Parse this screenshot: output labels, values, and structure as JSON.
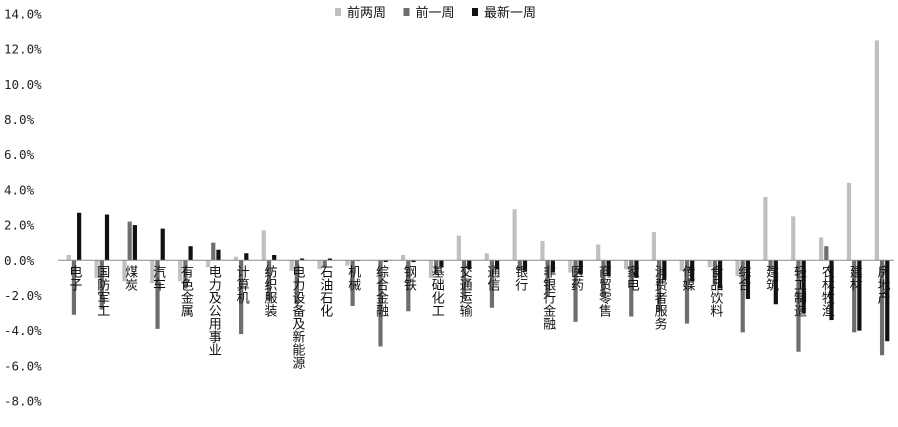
{
  "chart_data": {
    "type": "bar",
    "title": "",
    "xlabel": "",
    "ylabel": "",
    "ylim": [
      -8,
      14
    ],
    "yticks": [
      14,
      12,
      10,
      8,
      6,
      4,
      2,
      0,
      -2,
      -4,
      -6,
      -8
    ],
    "ytick_labels": [
      "14.0%",
      "12.0%",
      "10.0%",
      "8.0%",
      "6.0%",
      "4.0%",
      "2.0%",
      "0.0%",
      "-2.0%",
      "-4.0%",
      "-6.0%",
      "-8.0%"
    ],
    "grid": false,
    "legend_position": "top",
    "categories": [
      "电子",
      "国防军工",
      "煤炭",
      "汽车",
      "有色金属",
      "电力及公用事业",
      "计算机",
      "纺织服装",
      "电力设备及新能源",
      "石油石化",
      "机械",
      "综合金融",
      "钢铁",
      "基础化工",
      "交通运输",
      "通信",
      "银行",
      "非银行金融",
      "医药",
      "商贸零售",
      "家电",
      "消费者服务",
      "传媒",
      "食品饮料",
      "综合",
      "建筑",
      "轻工制造",
      "农林牧渔",
      "建材",
      "房地产"
    ],
    "series": [
      {
        "name": "前两周",
        "color": "#c0c0c0",
        "values": [
          0.3,
          -1.0,
          -1.2,
          -1.3,
          -1.2,
          -0.4,
          0.2,
          1.7,
          -0.6,
          -0.5,
          -0.3,
          0.0,
          0.3,
          -1.0,
          1.4,
          0.4,
          2.9,
          1.1,
          -0.7,
          0.9,
          -0.5,
          1.6,
          -0.6,
          -0.4,
          -0.9,
          3.6,
          2.5,
          1.3,
          4.4,
          12.5
        ]
      },
      {
        "name": "前一周",
        "color": "#6e6e6e",
        "values": [
          -3.1,
          -2.8,
          2.2,
          -3.9,
          -1.6,
          1.0,
          -4.2,
          -2.3,
          -2.5,
          -0.4,
          -2.6,
          -4.9,
          -2.9,
          -0.8,
          -2.2,
          -2.7,
          -0.6,
          -2.1,
          -3.5,
          -2.1,
          -3.2,
          -2.9,
          -3.6,
          -1.4,
          -4.1,
          -0.6,
          -5.2,
          0.8,
          -4.1,
          -5.4
        ]
      },
      {
        "name": "最新一周",
        "color": "#111111",
        "values": [
          2.7,
          2.6,
          2.0,
          1.8,
          0.8,
          0.6,
          0.4,
          0.3,
          0.1,
          0.1,
          0.0,
          -0.1,
          -0.1,
          -0.4,
          -0.5,
          -0.5,
          -0.6,
          -0.7,
          -0.8,
          -0.9,
          -1.0,
          -1.1,
          -1.2,
          -1.6,
          -2.2,
          -2.5,
          -3.0,
          -3.4,
          -4.0,
          -4.6
        ]
      }
    ]
  }
}
